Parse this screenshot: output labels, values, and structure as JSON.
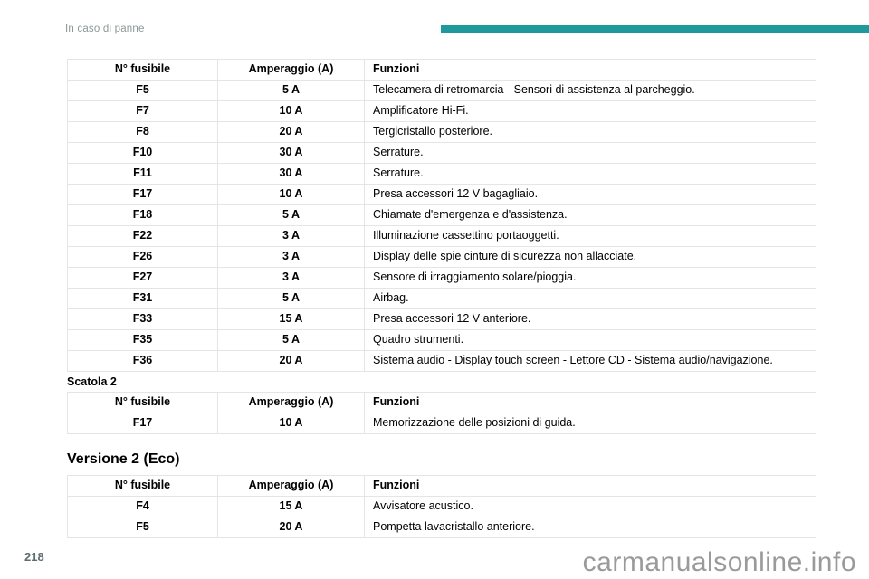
{
  "page": {
    "header_title": "In caso di panne",
    "page_number": "218",
    "watermark": "carmanualsonline.info"
  },
  "colors": {
    "accent_bar": "#1e999c",
    "table_border": "#e2e7e6",
    "header_text": "#8a9897",
    "page_number_text": "#5c6e6f",
    "watermark_text": "#9a9a9a"
  },
  "columns": [
    "N° fusibile",
    "Amperaggio (A)",
    "Funzioni"
  ],
  "tables": [
    {
      "heading": "",
      "rows": [
        [
          "F5",
          "5 A",
          "Telecamera di retromarcia - Sensori di assistenza al parcheggio."
        ],
        [
          "F7",
          "10 A",
          "Amplificatore Hi-Fi."
        ],
        [
          "F8",
          "20 A",
          "Tergicristallo posteriore."
        ],
        [
          "F10",
          "30 A",
          "Serrature."
        ],
        [
          "F11",
          "30 A",
          "Serrature."
        ],
        [
          "F17",
          "10 A",
          "Presa accessori 12 V bagagliaio."
        ],
        [
          "F18",
          "5 A",
          "Chiamate d'emergenza e d'assistenza."
        ],
        [
          "F22",
          "3 A",
          "Illuminazione cassettino portaoggetti."
        ],
        [
          "F26",
          "3 A",
          "Display delle spie cinture di sicurezza non allacciate."
        ],
        [
          "F27",
          "3 A",
          "Sensore di irraggiamento solare/pioggia."
        ],
        [
          "F31",
          "5 A",
          "Airbag."
        ],
        [
          "F33",
          "15 A",
          "Presa accessori 12 V anteriore."
        ],
        [
          "F35",
          "5 A",
          "Quadro strumenti."
        ],
        [
          "F36",
          "20 A",
          "Sistema audio - Display touch screen - Lettore CD - Sistema audio/navigazione."
        ]
      ]
    },
    {
      "heading": "Scatola 2",
      "rows": [
        [
          "F17",
          "10 A",
          "Memorizzazione delle posizioni di guida."
        ]
      ]
    },
    {
      "heading": "Versione 2 (Eco)",
      "rows": [
        [
          "F4",
          "15 A",
          "Avvisatore acustico."
        ],
        [
          "F5",
          "20 A",
          "Pompetta lavacristallo anteriore."
        ]
      ]
    }
  ]
}
